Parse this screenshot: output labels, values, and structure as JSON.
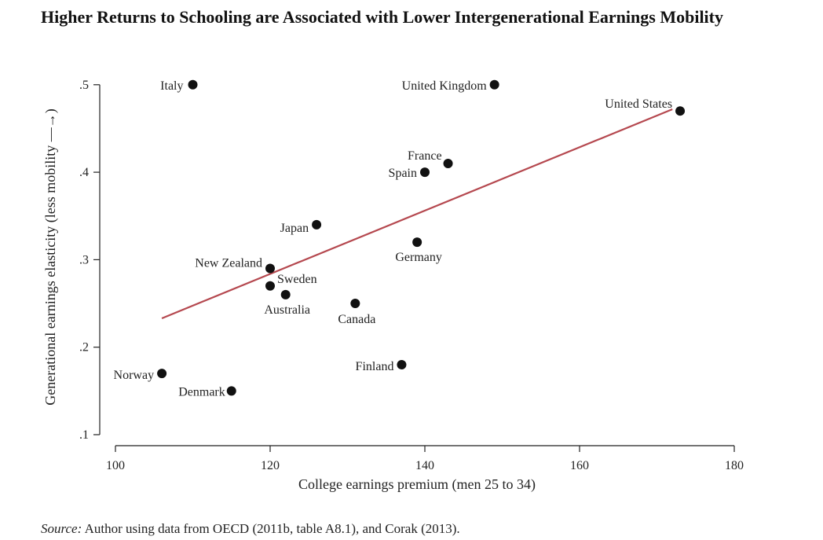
{
  "title": "Higher Returns to Schooling are Associated with Lower Intergenerational Earnings Mobility",
  "source": {
    "label": "Source:",
    "text": "Author using data from OECD (2011b, table A8.1), and Corak (2013)."
  },
  "colors": {
    "points": "#111111",
    "fit_line": "#b5484f",
    "axis": "#222222"
  },
  "chart_data": {
    "type": "scatter",
    "xlabel": "College earnings premium (men 25 to 34)",
    "ylabel": "Generational earnings elasticity (less mobility —→)",
    "xlim": [
      98,
      182
    ],
    "ylim": [
      0.08,
      0.51
    ],
    "xticks": [
      100,
      120,
      140,
      160,
      180
    ],
    "xtick_labels": [
      "100",
      "120",
      "140",
      "160",
      "180"
    ],
    "yticks": [
      0.1,
      0.2,
      0.3,
      0.4,
      0.5
    ],
    "ytick_labels": [
      ".1",
      ".2",
      ".3",
      ".4",
      ".5"
    ],
    "grid": false,
    "legend": "none",
    "points": [
      {
        "label": "Italy",
        "x": 110,
        "y": 0.5
      },
      {
        "label": "United Kingdom",
        "x": 149,
        "y": 0.5
      },
      {
        "label": "United States",
        "x": 173,
        "y": 0.47
      },
      {
        "label": "France",
        "x": 143,
        "y": 0.41
      },
      {
        "label": "Spain",
        "x": 140,
        "y": 0.4
      },
      {
        "label": "Japan",
        "x": 126,
        "y": 0.34
      },
      {
        "label": "Germany",
        "x": 139,
        "y": 0.32
      },
      {
        "label": "New Zealand",
        "x": 120,
        "y": 0.29
      },
      {
        "label": "Sweden",
        "x": 120,
        "y": 0.27
      },
      {
        "label": "Australia",
        "x": 122,
        "y": 0.26
      },
      {
        "label": "Canada",
        "x": 131,
        "y": 0.25
      },
      {
        "label": "Finland",
        "x": 137,
        "y": 0.18
      },
      {
        "label": "Norway",
        "x": 106,
        "y": 0.17
      },
      {
        "label": "Denmark",
        "x": 115,
        "y": 0.15
      }
    ],
    "fit_line": {
      "x": [
        106,
        172
      ],
      "y": [
        0.233,
        0.472
      ]
    }
  }
}
